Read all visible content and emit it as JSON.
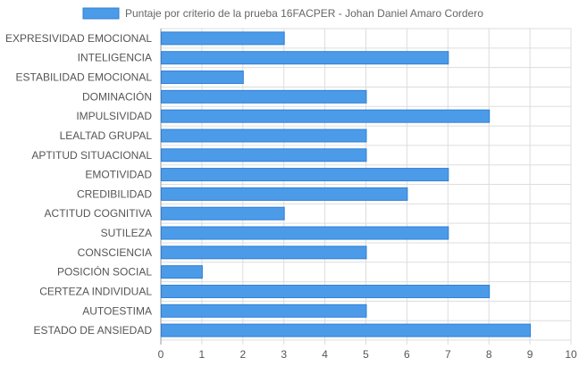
{
  "chart_data": {
    "type": "bar",
    "orientation": "horizontal",
    "title": "",
    "legend": {
      "position": "top",
      "entries": [
        "Puntaje por criterio de la prueba 16FACPER - Johan Daniel Amaro Cordero"
      ]
    },
    "categories": [
      "EXPRESIVIDAD EMOCIONAL",
      "INTELIGENCIA",
      "ESTABILIDAD EMOCIONAL",
      "DOMINACIÓN",
      "IMPULSIVIDAD",
      "LEALTAD GRUPAL",
      "APTITUD SITUACIONAL",
      "EMOTIVIDAD",
      "CREDIBILIDAD",
      "ACTITUD COGNITIVA",
      "SUTILEZA",
      "CONSCIENCIA",
      "POSICIÓN SOCIAL",
      "CERTEZA INDIVIDUAL",
      "AUTOESTIMA",
      "ESTADO DE ANSIEDAD"
    ],
    "series": [
      {
        "name": "Puntaje por criterio de la prueba 16FACPER - Johan Daniel Amaro Cordero",
        "values": [
          3,
          7,
          2,
          5,
          8,
          5,
          5,
          7,
          6,
          3,
          7,
          5,
          1,
          8,
          5,
          9
        ],
        "color": "#4c9be8",
        "border_color": "#2f7fd6"
      }
    ],
    "xlim": [
      0,
      10
    ],
    "x_ticks": [
      "0",
      "1",
      "2",
      "3",
      "4",
      "5",
      "6",
      "7",
      "8",
      "9",
      "10"
    ],
    "grid": true,
    "colors": {
      "grid": "#dddddd",
      "axis_text": "#555555"
    }
  }
}
